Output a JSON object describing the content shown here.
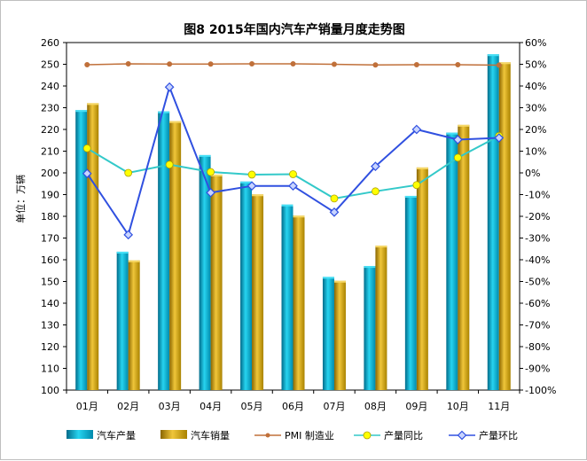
{
  "chart_data": {
    "type": "bar",
    "title": "图8 2015年国内汽车产销量月度走势图",
    "ylabel": "单位：万辆",
    "categories": [
      "01月",
      "02月",
      "03月",
      "04月",
      "05月",
      "06月",
      "07月",
      "08月",
      "09月",
      "10月",
      "11月"
    ],
    "ylim": [
      100,
      260
    ],
    "y_ticks": [
      "260",
      "250",
      "240",
      "230",
      "220",
      "210",
      "200",
      "190",
      "180",
      "170",
      "160",
      "150",
      "140",
      "130",
      "120",
      "110",
      "100"
    ],
    "ylim_right": [
      -100,
      60
    ],
    "y2_ticks": [
      "60%",
      "50%",
      "40%",
      "30%",
      "20%",
      "10%",
      "0%",
      "-10%",
      "-20%",
      "-30%",
      "-40%",
      "-50%",
      "-60%",
      "-70%",
      "-80%",
      "-90%",
      "-100%"
    ],
    "series": [
      {
        "name": "汽车产量",
        "kind": "bar",
        "axis": "left",
        "color": "#00a6c8",
        "values": [
          228.9,
          163.7,
          228.3,
          208.2,
          196.0,
          185.4,
          152.1,
          157.1,
          189.4,
          218.5,
          254.6
        ]
      },
      {
        "name": "汽车销量",
        "kind": "bar",
        "axis": "left",
        "color": "#c8a000",
        "values": [
          232.1,
          159.7,
          223.8,
          199.2,
          190.1,
          180.3,
          150.3,
          166.5,
          202.5,
          222.1,
          250.9
        ]
      },
      {
        "name": "PMI 制造业",
        "kind": "line",
        "axis": "right",
        "color": "#c0703a",
        "marker": "circle",
        "values": [
          49.8,
          50.2,
          50.1,
          50.1,
          50.2,
          50.2,
          50.0,
          49.7,
          49.8,
          49.8,
          49.6
        ]
      },
      {
        "name": "产量同比",
        "kind": "line",
        "axis": "right",
        "color": "#33c9c9",
        "marker_color": "#ffff00",
        "marker": "circle",
        "values": [
          11.3,
          0,
          3.8,
          0.4,
          -0.8,
          -0.6,
          -11.8,
          -8.5,
          -5.6,
          7.0,
          17.0
        ]
      },
      {
        "name": "产量环比",
        "kind": "line",
        "axis": "right",
        "color": "#3050e0",
        "marker": "diamond",
        "values": [
          -0.3,
          -28.5,
          39.5,
          -9.1,
          -6.0,
          -6.0,
          -18.1,
          3.0,
          20.0,
          15.3,
          16.1
        ]
      }
    ],
    "legend_position": "bottom",
    "grid": false
  }
}
